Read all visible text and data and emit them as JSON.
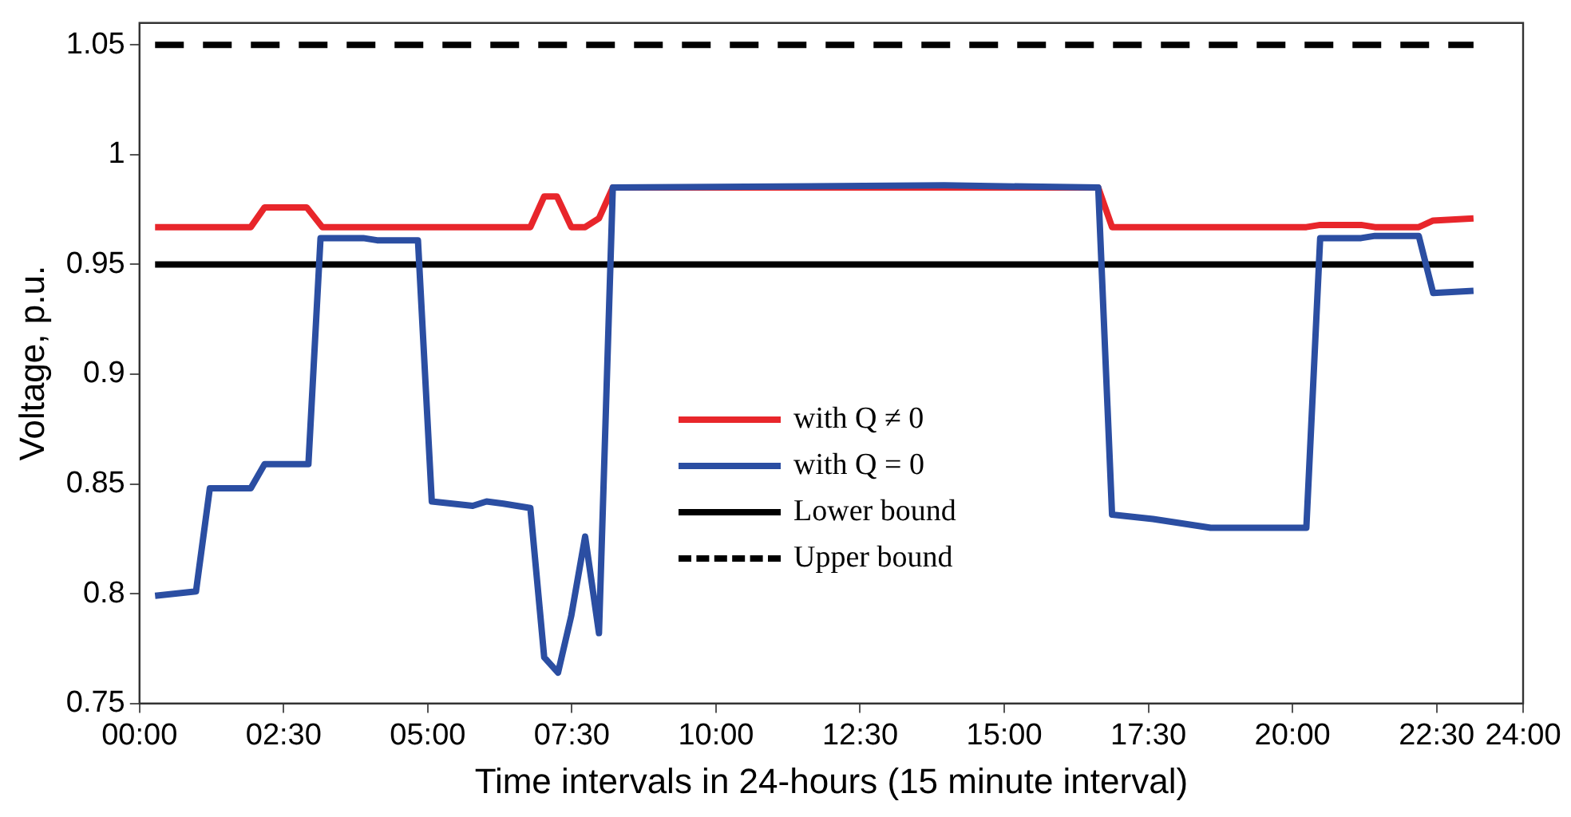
{
  "chart_data": {
    "type": "line",
    "xlabel": "Time intervals in 24-hours (15 minute interval)",
    "ylabel": "Voltage, p.u.",
    "xlim": [
      0,
      24
    ],
    "xticks": [
      {
        "value": 0,
        "label": "00:00"
      },
      {
        "value": 2.5,
        "label": "02:30"
      },
      {
        "value": 5,
        "label": "05:00"
      },
      {
        "value": 7.5,
        "label": "07:30"
      },
      {
        "value": 10,
        "label": "10:00"
      },
      {
        "value": 12.5,
        "label": "12:30"
      },
      {
        "value": 15,
        "label": "15:00"
      },
      {
        "value": 17.5,
        "label": "17:30"
      },
      {
        "value": 20,
        "label": "20:00"
      },
      {
        "value": 22.5,
        "label": "22:30"
      },
      {
        "value": 24,
        "label": "24:00"
      }
    ],
    "ylim": [
      0.75,
      1.06
    ],
    "yticks": [
      0.75,
      0.8,
      0.85,
      0.9,
      0.95,
      1,
      1.05
    ],
    "grid": false,
    "legend": "center",
    "marker": "none",
    "line_style": "solid",
    "series": [
      {
        "name": "with Q ≠ 0",
        "color": "#e8262b",
        "x": [
          0.27,
          1.93,
          2.17,
          2.9,
          3.17,
          6.78,
          7.02,
          7.24,
          7.49,
          7.73,
          7.97,
          8.21,
          16.63,
          16.87,
          20.24,
          20.48,
          21.19,
          21.43,
          22.19,
          22.44,
          23.14
        ],
        "values": [
          0.967,
          0.967,
          0.976,
          0.976,
          0.967,
          0.967,
          0.981,
          0.981,
          0.967,
          0.967,
          0.971,
          0.985,
          0.985,
          0.967,
          0.967,
          0.968,
          0.968,
          0.967,
          0.967,
          0.97,
          0.971
        ]
      },
      {
        "name": "with Q = 0",
        "color": "#2b4ea2",
        "x": [
          0.27,
          0.98,
          1.22,
          1.93,
          2.17,
          2.93,
          3.14,
          3.88,
          4.12,
          4.83,
          5.07,
          5.78,
          6.02,
          6.31,
          6.78,
          7.02,
          7.26,
          7.49,
          7.73,
          7.97,
          8.21,
          13.96,
          16.63,
          16.87,
          17.58,
          18.58,
          20.24,
          20.48,
          21.19,
          21.43,
          22.19,
          22.44,
          23.14
        ],
        "values": [
          0.799,
          0.801,
          0.848,
          0.848,
          0.859,
          0.859,
          0.962,
          0.962,
          0.961,
          0.961,
          0.842,
          0.84,
          0.842,
          0.841,
          0.839,
          0.771,
          0.764,
          0.79,
          0.826,
          0.782,
          0.985,
          0.986,
          0.985,
          0.836,
          0.834,
          0.83,
          0.83,
          0.962,
          0.962,
          0.963,
          0.963,
          0.937,
          0.938
        ]
      }
    ],
    "ref_lines": [
      {
        "axis": "y",
        "value": 0.95,
        "label": "Lower bound",
        "color": "#000000",
        "line_style": "solid"
      },
      {
        "axis": "y",
        "value": 1.05,
        "label": "Upper bound",
        "color": "#000000",
        "line_style": "dashed"
      }
    ]
  }
}
